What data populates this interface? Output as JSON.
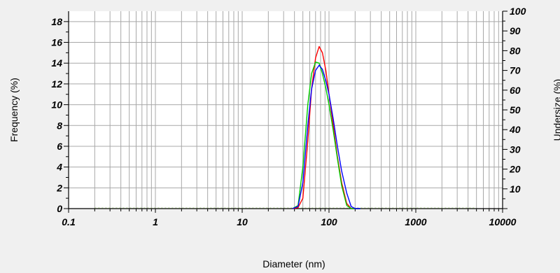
{
  "chart_data": {
    "type": "line",
    "xlabel": "Diameter (nm)",
    "ylabel": "Frequency (%)",
    "y2label": "Undersize (%)",
    "x_scale": "log",
    "xlim": [
      0.1,
      10000
    ],
    "ylim": [
      0,
      19
    ],
    "y2lim": [
      0,
      100
    ],
    "grid": true,
    "x_ticks": [
      "0.1",
      "1",
      "10",
      "100",
      "1000",
      "10000"
    ],
    "y_ticks": [
      "0",
      "2",
      "4",
      "6",
      "8",
      "10",
      "12",
      "14",
      "16",
      "18"
    ],
    "y2_ticks": [
      "10",
      "20",
      "30",
      "40",
      "50",
      "60",
      "70",
      "80",
      "90",
      "100"
    ],
    "series": [
      {
        "color": "#ff0000",
        "x": [
          38,
          44,
          50,
          57,
          63,
          70,
          77,
          84,
          92,
          100,
          112,
          125,
          140,
          160,
          180,
          200,
          230
        ],
        "y": [
          0,
          0.1,
          1.0,
          6.5,
          11.5,
          14.5,
          15.6,
          15.0,
          13.3,
          11.0,
          8.0,
          5.0,
          2.5,
          0.5,
          0,
          0,
          0
        ]
      },
      {
        "color": "#00cc00",
        "x": [
          38,
          44,
          50,
          57,
          63,
          70,
          77,
          84,
          92,
          100,
          112,
          125,
          140,
          160,
          180,
          200,
          230
        ],
        "y": [
          0,
          0.3,
          4.0,
          10.0,
          13.0,
          14.1,
          14.0,
          13.0,
          11.6,
          10.0,
          7.5,
          4.8,
          2.2,
          0.3,
          0,
          0,
          0
        ]
      },
      {
        "color": "#0000ff",
        "x": [
          38,
          44,
          50,
          57,
          63,
          70,
          77,
          84,
          92,
          100,
          112,
          125,
          140,
          160,
          180,
          200,
          230
        ],
        "y": [
          0,
          0.2,
          2.5,
          8.0,
          11.5,
          13.3,
          13.8,
          13.4,
          12.3,
          11.0,
          8.6,
          6.0,
          3.6,
          1.5,
          0.2,
          0,
          0
        ]
      }
    ],
    "baseline_color": "#aacc88"
  }
}
